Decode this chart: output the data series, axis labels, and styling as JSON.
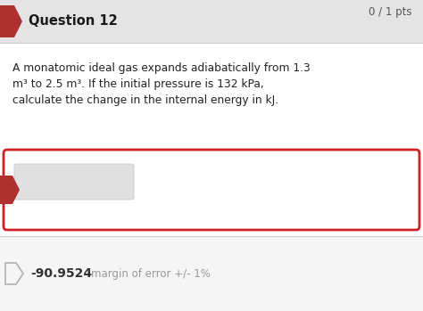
{
  "bg_color": "#efefef",
  "header_bg": "#e4e4e4",
  "header_text": "Question 12",
  "header_pts": "0 / 1 pts",
  "header_font_size": 10.5,
  "pts_font_size": 8.5,
  "arrow_color": "#b03030",
  "body_bg": "#ffffff",
  "question_text_line1": "A monatomic ideal gas expands adiabatically from 1.3",
  "question_text_line2": "m³ to 2.5 m³. If the initial pressure is 132 kPa,",
  "question_text_line3": "calculate the change in the internal energy in kJ.",
  "question_font_size": 8.8,
  "answer_box_border": "#cc2222",
  "answer_box_bg": "#ffffff",
  "input_box_bg": "#e0e0e0",
  "answer_value": "-90.9524",
  "answer_value_color": "#333333",
  "margin_text": "margin of error +/- 1%",
  "margin_text_color": "#999999",
  "answer_font_size": 8.5,
  "divider_color": "#cccccc",
  "bottom_bg": "#f5f5f5"
}
